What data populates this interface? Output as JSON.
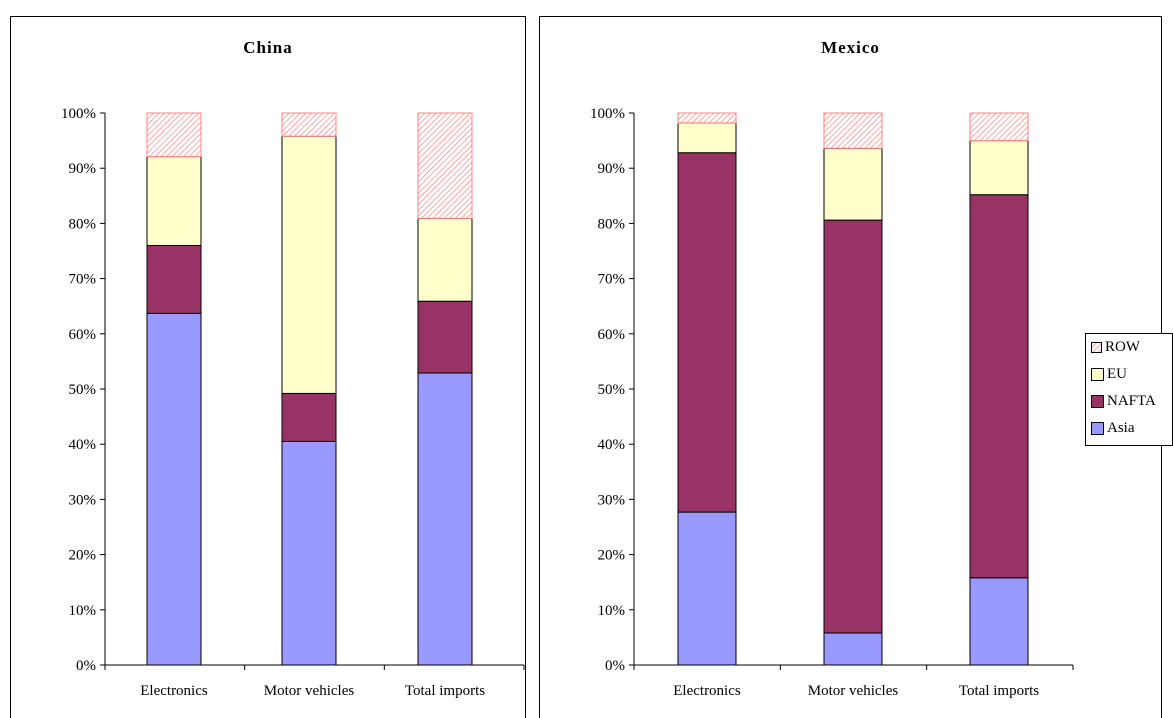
{
  "chart_data": [
    {
      "type": "bar",
      "stacked": true,
      "title": "China",
      "categories": [
        "Electronics",
        "Motor vehicles",
        "Total imports"
      ],
      "y_ticks": [
        "0%",
        "10%",
        "20%",
        "30%",
        "40%",
        "50%",
        "60%",
        "70%",
        "80%",
        "90%",
        "100%"
      ],
      "ylim": [
        0,
        100
      ],
      "series": [
        {
          "name": "Asia",
          "values": [
            63.7,
            40.5,
            52.9
          ]
        },
        {
          "name": "NAFTA",
          "values": [
            12.3,
            8.7,
            13.0
          ]
        },
        {
          "name": "EU",
          "values": [
            16.1,
            46.6,
            15.0
          ]
        },
        {
          "name": "ROW",
          "values": [
            7.9,
            4.2,
            19.1
          ]
        }
      ]
    },
    {
      "type": "bar",
      "stacked": true,
      "title": "Mexico",
      "categories": [
        "Electronics",
        "Motor vehicles",
        "Total imports"
      ],
      "y_ticks": [
        "0%",
        "10%",
        "20%",
        "30%",
        "40%",
        "50%",
        "60%",
        "70%",
        "80%",
        "90%",
        "100%"
      ],
      "ylim": [
        0,
        100
      ],
      "series": [
        {
          "name": "Asia",
          "values": [
            27.7,
            5.8,
            15.8
          ]
        },
        {
          "name": "NAFTA",
          "values": [
            65.1,
            74.8,
            69.4
          ]
        },
        {
          "name": "EU",
          "values": [
            5.4,
            13.0,
            9.8
          ]
        },
        {
          "name": "ROW",
          "values": [
            1.8,
            6.4,
            5.0
          ]
        }
      ]
    }
  ],
  "legend": {
    "placement": "right",
    "items": [
      {
        "name": "ROW",
        "color": "#ff9999",
        "pattern": "hatched"
      },
      {
        "name": "EU",
        "color": "#ffffcc"
      },
      {
        "name": "NAFTA",
        "color": "#993366"
      },
      {
        "name": "Asia",
        "color": "#9999ff"
      }
    ]
  },
  "colors": {
    "Asia": "#9999ff",
    "NAFTA": "#993366",
    "EU": "#ffffcc",
    "ROW": "#ff9999"
  }
}
